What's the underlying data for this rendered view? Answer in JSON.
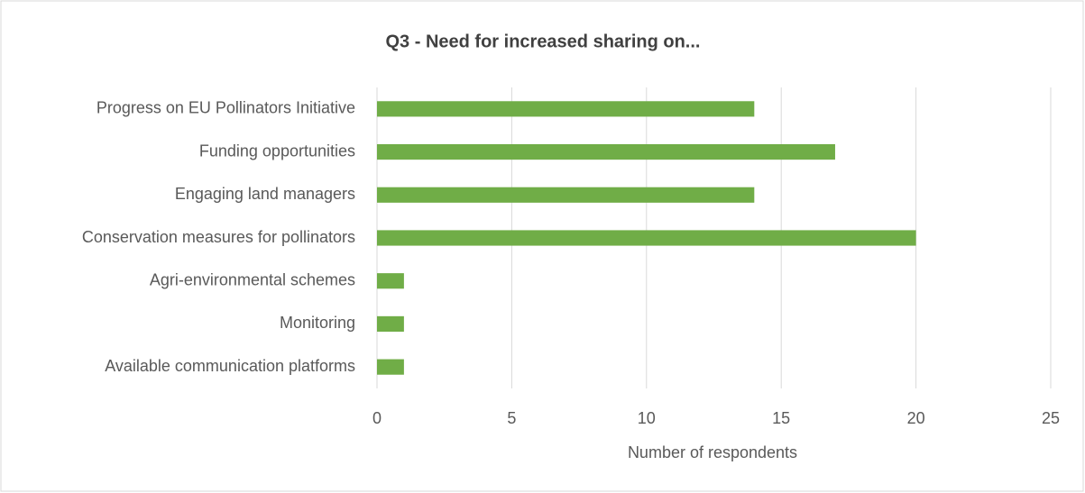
{
  "chart_data": {
    "type": "barh",
    "title": "Q3 - Need for increased sharing on...",
    "categories": [
      "Progress on EU Pollinators Initiative",
      "Funding opportunities",
      "Engaging land managers",
      "Conservation measures for pollinators",
      "Agri-environmental schemes",
      "Monitoring",
      "Available communication platforms"
    ],
    "values": [
      14,
      17,
      14,
      20,
      1,
      1,
      1
    ],
    "color": "#70ad47",
    "xlabel": "Number of respondents",
    "xlim": [
      0,
      25
    ],
    "xticks": [
      0,
      5,
      10,
      15,
      20,
      25
    ],
    "grid": true
  }
}
